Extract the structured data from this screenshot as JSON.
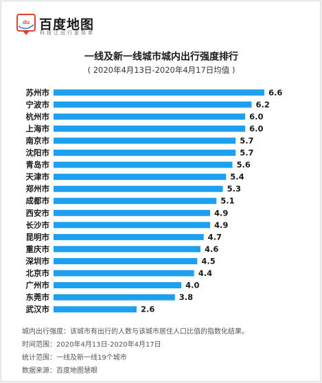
{
  "brand": {
    "logo_mark": "du",
    "name": "百度地图",
    "tagline": "科技让出行更简单"
  },
  "colors": {
    "bar": "#1ea0f0",
    "logo_red": "#e53d30",
    "logo_blue": "#2f7de1"
  },
  "chart_data": {
    "type": "bar",
    "orientation": "horizontal",
    "title": "一线及新一线城市城内出行强度排行",
    "subtitle": "( 2020年4月13日-2020年4月17日均值 )",
    "categories": [
      "苏州市",
      "宁波市",
      "杭州市",
      "上海市",
      "南京市",
      "沈阳市",
      "青岛市",
      "天津市",
      "郑州市",
      "成都市",
      "西安市",
      "长沙市",
      "昆明市",
      "重庆市",
      "深圳市",
      "北京市",
      "广州市",
      "东莞市",
      "武汉市"
    ],
    "values": [
      6.6,
      6.2,
      6.0,
      6.0,
      5.7,
      5.7,
      5.6,
      5.4,
      5.3,
      5.1,
      4.9,
      4.9,
      4.7,
      4.6,
      4.5,
      4.4,
      4.0,
      3.8,
      2.6
    ],
    "value_labels": [
      "6.6",
      "6.2",
      "6.0",
      "6.0",
      "5.7",
      "5.7",
      "5.6",
      "5.4",
      "5.3",
      "5.1",
      "4.9",
      "4.9",
      "4.7",
      "4.6",
      "4.5",
      "4.4",
      "4.0",
      "3.8",
      "2.6"
    ],
    "xlim": [
      0,
      7
    ],
    "grid": false,
    "legend": "none",
    "data_labels": true
  },
  "notes": [
    "城内出行强度：该城市有出行的人数与该城市居住人口比值的指数化结果。",
    "时间范围：2020年4月13日-2020年4月17日",
    "统计范围：一线及新一线19个城市",
    "数据来源：百度地图慧眼"
  ]
}
